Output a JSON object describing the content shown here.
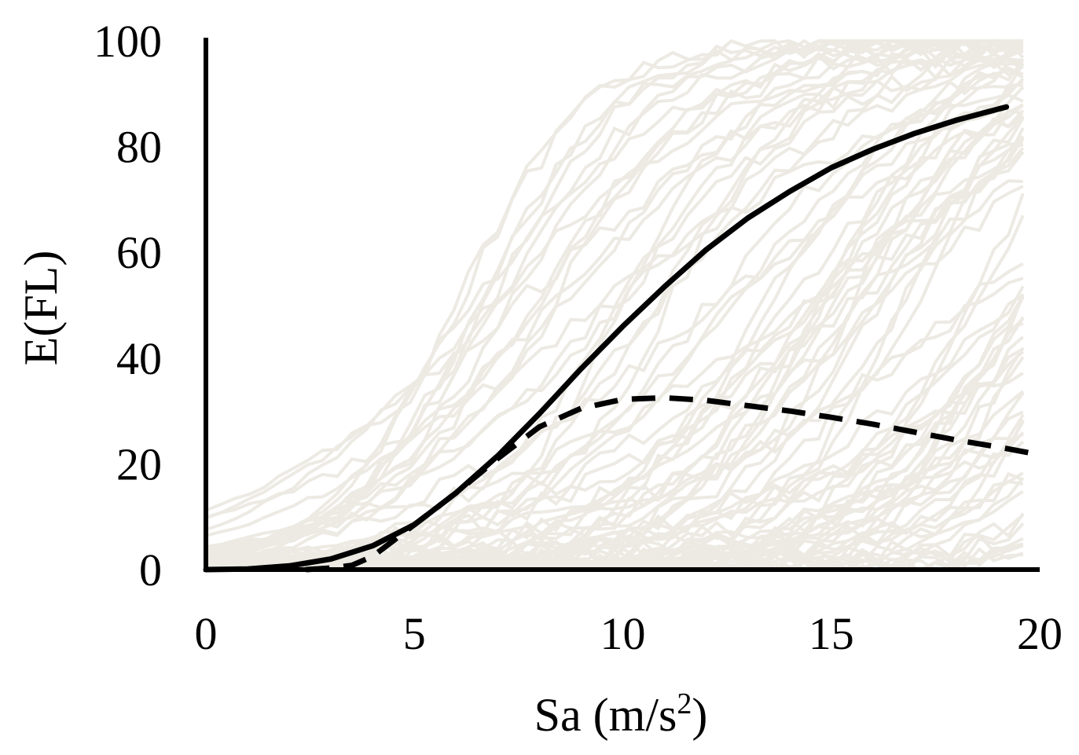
{
  "chart_data": {
    "type": "line",
    "title": "",
    "xlabel": "Sa (m/s",
    "xlabel_sup": "2",
    "xlabel_close": ")",
    "ylabel": "E(FL)",
    "xlim": [
      0,
      20
    ],
    "ylim": [
      0,
      100
    ],
    "xticks": [
      0,
      5,
      10,
      15,
      20
    ],
    "yticks": [
      0,
      20,
      40,
      60,
      80,
      100
    ],
    "grid": false,
    "legend": "none",
    "colors": {
      "background_curves": "#eceae3",
      "mean": "#000000",
      "dashed": "#000000",
      "axis": "#000000"
    },
    "series": [
      {
        "style": "solid",
        "x": [
          0,
          1,
          2,
          3,
          4,
          5,
          6,
          7,
          8,
          9,
          10,
          11,
          12,
          13,
          14,
          15,
          16,
          17,
          18,
          19.2
        ],
        "y": [
          0,
          0.1,
          0.7,
          2,
          4.5,
          8.5,
          14.5,
          21.5,
          29.5,
          38,
          46,
          53.5,
          60.5,
          66.5,
          71.5,
          76,
          79.5,
          82.5,
          85,
          87.5
        ]
      },
      {
        "style": "dashed",
        "x": [
          2.4,
          3,
          3.5,
          4,
          5,
          6,
          7,
          8,
          9,
          10,
          11,
          12,
          13,
          14,
          15,
          16,
          17,
          18,
          19,
          19.8
        ],
        "y": [
          0,
          0.3,
          0.8,
          2.5,
          8.5,
          14.5,
          21,
          27,
          30.5,
          32.2,
          32.5,
          32,
          31,
          30,
          28.8,
          27.5,
          26,
          24.5,
          23.2,
          22
        ]
      }
    ]
  }
}
